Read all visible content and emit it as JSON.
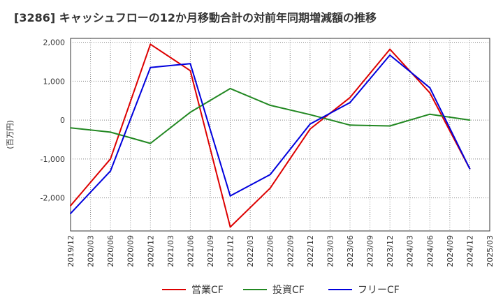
{
  "chart_data": {
    "type": "line",
    "title": "[3286]  キャッシュフローの12か月移動合計の対前年同期増減額の推移",
    "ylabel": "(百万円)",
    "x_tick_labels": [
      "2019/12",
      "2020/03",
      "2020/06",
      "2020/09",
      "2020/12",
      "2021/03",
      "2021/06",
      "2021/09",
      "2021/12",
      "2022/03",
      "2022/06",
      "2022/09",
      "2022/12",
      "2023/03",
      "2023/06",
      "2023/09",
      "2023/12",
      "2024/03",
      "2024/06",
      "2024/09",
      "2024/12",
      "2025/03"
    ],
    "y_ticks": [
      2000,
      1000,
      0,
      -1000,
      -2000
    ],
    "y_tick_labels": [
      "2,000",
      "1,000",
      "0",
      "-1,000",
      "-2,000"
    ],
    "ylim": [
      -2850,
      2100
    ],
    "grid": true,
    "legend_position": "bottom",
    "series": [
      {
        "name": "営業CF",
        "color": "#dd0000",
        "points": [
          [
            "2019/12",
            -2200
          ],
          [
            "2020/06",
            -1000
          ],
          [
            "2020/12",
            1950
          ],
          [
            "2021/06",
            1270
          ],
          [
            "2021/12",
            -2750
          ],
          [
            "2022/06",
            -1750
          ],
          [
            "2022/12",
            -230
          ],
          [
            "2023/06",
            580
          ],
          [
            "2023/12",
            1820
          ],
          [
            "2024/06",
            700
          ],
          [
            "2024/12",
            -1250
          ]
        ]
      },
      {
        "name": "投資CF",
        "color": "#228822",
        "points": [
          [
            "2019/12",
            -200
          ],
          [
            "2020/06",
            -310
          ],
          [
            "2020/12",
            -600
          ],
          [
            "2021/06",
            200
          ],
          [
            "2021/12",
            810
          ],
          [
            "2022/06",
            380
          ],
          [
            "2022/12",
            140
          ],
          [
            "2023/06",
            -130
          ],
          [
            "2023/12",
            -150
          ],
          [
            "2024/06",
            150
          ],
          [
            "2024/12",
            0
          ]
        ]
      },
      {
        "name": "フリーCF",
        "color": "#0000dd",
        "points": [
          [
            "2019/12",
            -2400
          ],
          [
            "2020/06",
            -1310
          ],
          [
            "2020/12",
            1350
          ],
          [
            "2021/06",
            1450
          ],
          [
            "2021/12",
            -1950
          ],
          [
            "2022/06",
            -1400
          ],
          [
            "2022/12",
            -100
          ],
          [
            "2023/06",
            450
          ],
          [
            "2023/12",
            1670
          ],
          [
            "2024/06",
            830
          ],
          [
            "2024/12",
            -1250
          ]
        ]
      }
    ]
  }
}
